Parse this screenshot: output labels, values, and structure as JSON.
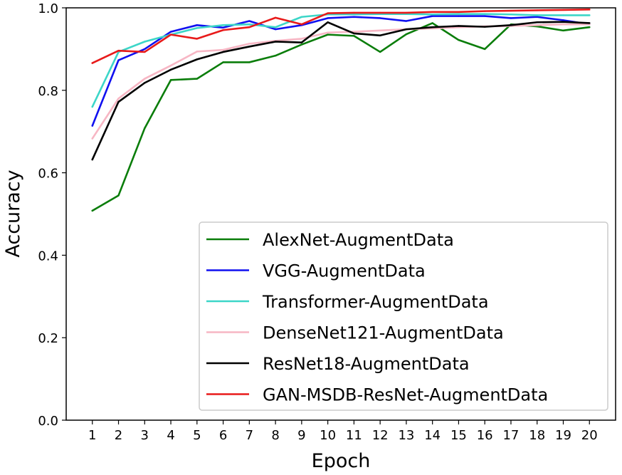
{
  "chart_data": {
    "type": "line",
    "xlabel": "Epoch",
    "ylabel": "Accuracy",
    "x": [
      1,
      2,
      3,
      4,
      5,
      6,
      7,
      8,
      9,
      10,
      11,
      12,
      13,
      14,
      15,
      16,
      17,
      18,
      19,
      20
    ],
    "x_ticks": [
      "1",
      "2",
      "3",
      "4",
      "5",
      "6",
      "7",
      "8",
      "9",
      "10",
      "11",
      "12",
      "13",
      "14",
      "15",
      "16",
      "17",
      "18",
      "19",
      "20"
    ],
    "xlim": [
      0.0,
      21.0
    ],
    "ylim": [
      0.0,
      1.0
    ],
    "y_ticks": [
      "0.0",
      "0.2",
      "0.4",
      "0.6",
      "0.8",
      "1.0"
    ],
    "grid": false,
    "legend_position": "bottom-right",
    "series": [
      {
        "name": "AlexNet-AugmentData",
        "color": "#0a7d0a",
        "values": [
          0.508,
          0.545,
          0.708,
          0.825,
          0.828,
          0.868,
          0.868,
          0.884,
          0.911,
          0.935,
          0.932,
          0.893,
          0.936,
          0.963,
          0.922,
          0.9,
          0.96,
          0.955,
          0.945,
          0.953
        ]
      },
      {
        "name": "VGG-AugmentData",
        "color": "#1010f0",
        "values": [
          0.714,
          0.873,
          0.9,
          0.942,
          0.958,
          0.952,
          0.968,
          0.948,
          0.958,
          0.975,
          0.978,
          0.975,
          0.968,
          0.98,
          0.98,
          0.98,
          0.975,
          0.978,
          0.97,
          0.96
        ]
      },
      {
        "name": "Transformer-AugmentData",
        "color": "#3cd6c8",
        "values": [
          0.76,
          0.893,
          0.918,
          0.935,
          0.951,
          0.958,
          0.96,
          0.953,
          0.978,
          0.984,
          0.984,
          0.985,
          0.985,
          0.984,
          0.985,
          0.985,
          0.984,
          0.982,
          0.982,
          0.982
        ]
      },
      {
        "name": "DenseNet121-AugmentData",
        "color": "#f7b6c4",
        "values": [
          0.683,
          0.78,
          0.828,
          0.86,
          0.894,
          0.898,
          0.913,
          0.92,
          0.925,
          0.94,
          0.942,
          0.945,
          0.948,
          0.95,
          0.953,
          0.955,
          0.956,
          0.958,
          0.96,
          0.96
        ]
      },
      {
        "name": "ResNet18-AugmentData",
        "color": "#000000",
        "values": [
          0.632,
          0.772,
          0.818,
          0.85,
          0.875,
          0.893,
          0.906,
          0.918,
          0.916,
          0.965,
          0.938,
          0.933,
          0.948,
          0.953,
          0.956,
          0.954,
          0.958,
          0.965,
          0.966,
          0.963
        ]
      },
      {
        "name": "GAN-MSDB-ResNet-AugmentData",
        "color": "#e81a1a",
        "values": [
          0.866,
          0.896,
          0.893,
          0.935,
          0.925,
          0.946,
          0.953,
          0.976,
          0.96,
          0.987,
          0.988,
          0.988,
          0.988,
          0.99,
          0.99,
          0.992,
          0.993,
          0.994,
          0.995,
          0.996
        ]
      }
    ]
  }
}
